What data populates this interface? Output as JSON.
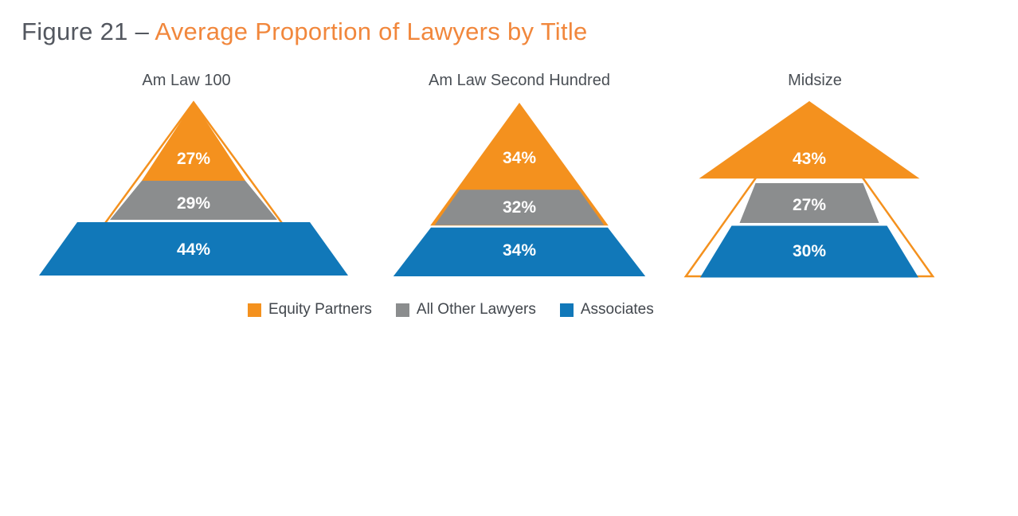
{
  "title": {
    "prefix": "Figure 21 – ",
    "highlight": "Average Proportion of Lawyers by Title"
  },
  "colors": {
    "orange": "#F4911E",
    "gray": "#8B8D8E",
    "blue": "#1178B9",
    "title_gray": "#53575F",
    "title_orange": "#F1873C",
    "chart_title_text": "#4A4F55",
    "legend_text": "#42474D",
    "segment_label_text": "#FFFFFF"
  },
  "chart_data": {
    "type": "pyramid",
    "figure_label": "Figure 21",
    "title": "Average Proportion of Lawyers by Title",
    "unit": "%",
    "categories": [
      "Am Law 100",
      "Am Law Second Hundred",
      "Midsize"
    ],
    "series": [
      {
        "name": "Equity Partners",
        "color": "#F4911E",
        "values": [
          27,
          34,
          43
        ]
      },
      {
        "name": "All Other Lawyers",
        "color": "#8B8D8E",
        "values": [
          29,
          32,
          27
        ]
      },
      {
        "name": "Associates",
        "color": "#1178B9",
        "values": [
          44,
          34,
          30
        ]
      }
    ],
    "pyramids": [
      {
        "category": "Am Law 100",
        "labels": [
          "27%",
          "29%",
          "44%"
        ]
      },
      {
        "category": "Am Law Second Hundred",
        "labels": [
          "34%",
          "32%",
          "34%"
        ]
      },
      {
        "category": "Midsize",
        "labels": [
          "43%",
          "27%",
          "30%"
        ]
      }
    ],
    "legend": {
      "position": "bottom",
      "items": [
        {
          "label": "Equity Partners",
          "color": "#F4911E"
        },
        {
          "label": "All Other Lawyers",
          "color": "#8B8D8E"
        },
        {
          "label": "Associates",
          "color": "#1178B9"
        }
      ]
    }
  }
}
